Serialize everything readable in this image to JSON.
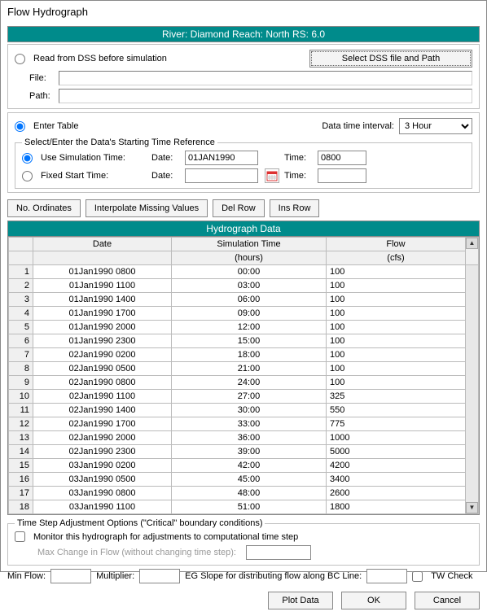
{
  "window": {
    "title": "Flow Hydrograph"
  },
  "header": {
    "text": "River: Diamond  Reach: North  RS: 6.0"
  },
  "dss": {
    "radio_label": "Read from DSS before simulation",
    "select_btn": "Select DSS file and Path",
    "file_label": "File:",
    "file_value": "",
    "path_label": "Path:",
    "path_value": ""
  },
  "enter_table": {
    "radio_label": "Enter Table",
    "interval_label": "Data time interval:",
    "interval_value": "3 Hour",
    "timeref": {
      "legend": "Select/Enter the Data's Starting Time Reference",
      "use_sim_label": "Use Simulation Time:",
      "fixed_label": "Fixed Start Time:",
      "date_label": "Date:",
      "time_label": "Time:",
      "sim_date": "01JAN1990",
      "sim_time": "0800",
      "fixed_date": "",
      "fixed_time": ""
    }
  },
  "toolbar": {
    "no_ordinates": "No. Ordinates",
    "interpolate": "Interpolate Missing Values",
    "del_row": "Del Row",
    "ins_row": "Ins Row"
  },
  "table": {
    "title": "Hydrograph Data",
    "columns": {
      "date": "Date",
      "sim_time": "Simulation Time",
      "sim_time_unit": "(hours)",
      "flow": "Flow",
      "flow_unit": "(cfs)"
    },
    "rows": [
      {
        "n": 1,
        "date": "01Jan1990 0800",
        "t": "00:00",
        "flow": "100"
      },
      {
        "n": 2,
        "date": "01Jan1990 1100",
        "t": "03:00",
        "flow": "100"
      },
      {
        "n": 3,
        "date": "01Jan1990 1400",
        "t": "06:00",
        "flow": "100"
      },
      {
        "n": 4,
        "date": "01Jan1990 1700",
        "t": "09:00",
        "flow": "100"
      },
      {
        "n": 5,
        "date": "01Jan1990 2000",
        "t": "12:00",
        "flow": "100"
      },
      {
        "n": 6,
        "date": "01Jan1990 2300",
        "t": "15:00",
        "flow": "100"
      },
      {
        "n": 7,
        "date": "02Jan1990 0200",
        "t": "18:00",
        "flow": "100"
      },
      {
        "n": 8,
        "date": "02Jan1990 0500",
        "t": "21:00",
        "flow": "100"
      },
      {
        "n": 9,
        "date": "02Jan1990 0800",
        "t": "24:00",
        "flow": "100"
      },
      {
        "n": 10,
        "date": "02Jan1990 1100",
        "t": "27:00",
        "flow": "325"
      },
      {
        "n": 11,
        "date": "02Jan1990 1400",
        "t": "30:00",
        "flow": "550"
      },
      {
        "n": 12,
        "date": "02Jan1990 1700",
        "t": "33:00",
        "flow": "775"
      },
      {
        "n": 13,
        "date": "02Jan1990 2000",
        "t": "36:00",
        "flow": "1000"
      },
      {
        "n": 14,
        "date": "02Jan1990 2300",
        "t": "39:00",
        "flow": "5000"
      },
      {
        "n": 15,
        "date": "03Jan1990 0200",
        "t": "42:00",
        "flow": "4200"
      },
      {
        "n": 16,
        "date": "03Jan1990 0500",
        "t": "45:00",
        "flow": "3400"
      },
      {
        "n": 17,
        "date": "03Jan1990 0800",
        "t": "48:00",
        "flow": "2600"
      },
      {
        "n": 18,
        "date": "03Jan1990 1100",
        "t": "51:00",
        "flow": "1800"
      }
    ]
  },
  "timestep": {
    "legend": "Time Step Adjustment Options (\"Critical\" boundary conditions)",
    "monitor_label": "Monitor this hydrograph for adjustments to computational time step",
    "max_change_label": "Max Change in Flow (without changing time step):",
    "max_change_value": ""
  },
  "footer": {
    "min_flow_label": "Min Flow:",
    "min_flow_value": "",
    "multiplier_label": "Multiplier:",
    "multiplier_value": "",
    "eg_slope_label": "EG Slope for distributing flow along BC Line:",
    "eg_slope_value": "",
    "tw_check_label": "TW Check",
    "plot_btn": "Plot Data",
    "ok_btn": "OK",
    "cancel_btn": "Cancel"
  },
  "colors": {
    "accent": "#008b8b",
    "border": "#888888",
    "panel_border": "#c0c0c0"
  }
}
